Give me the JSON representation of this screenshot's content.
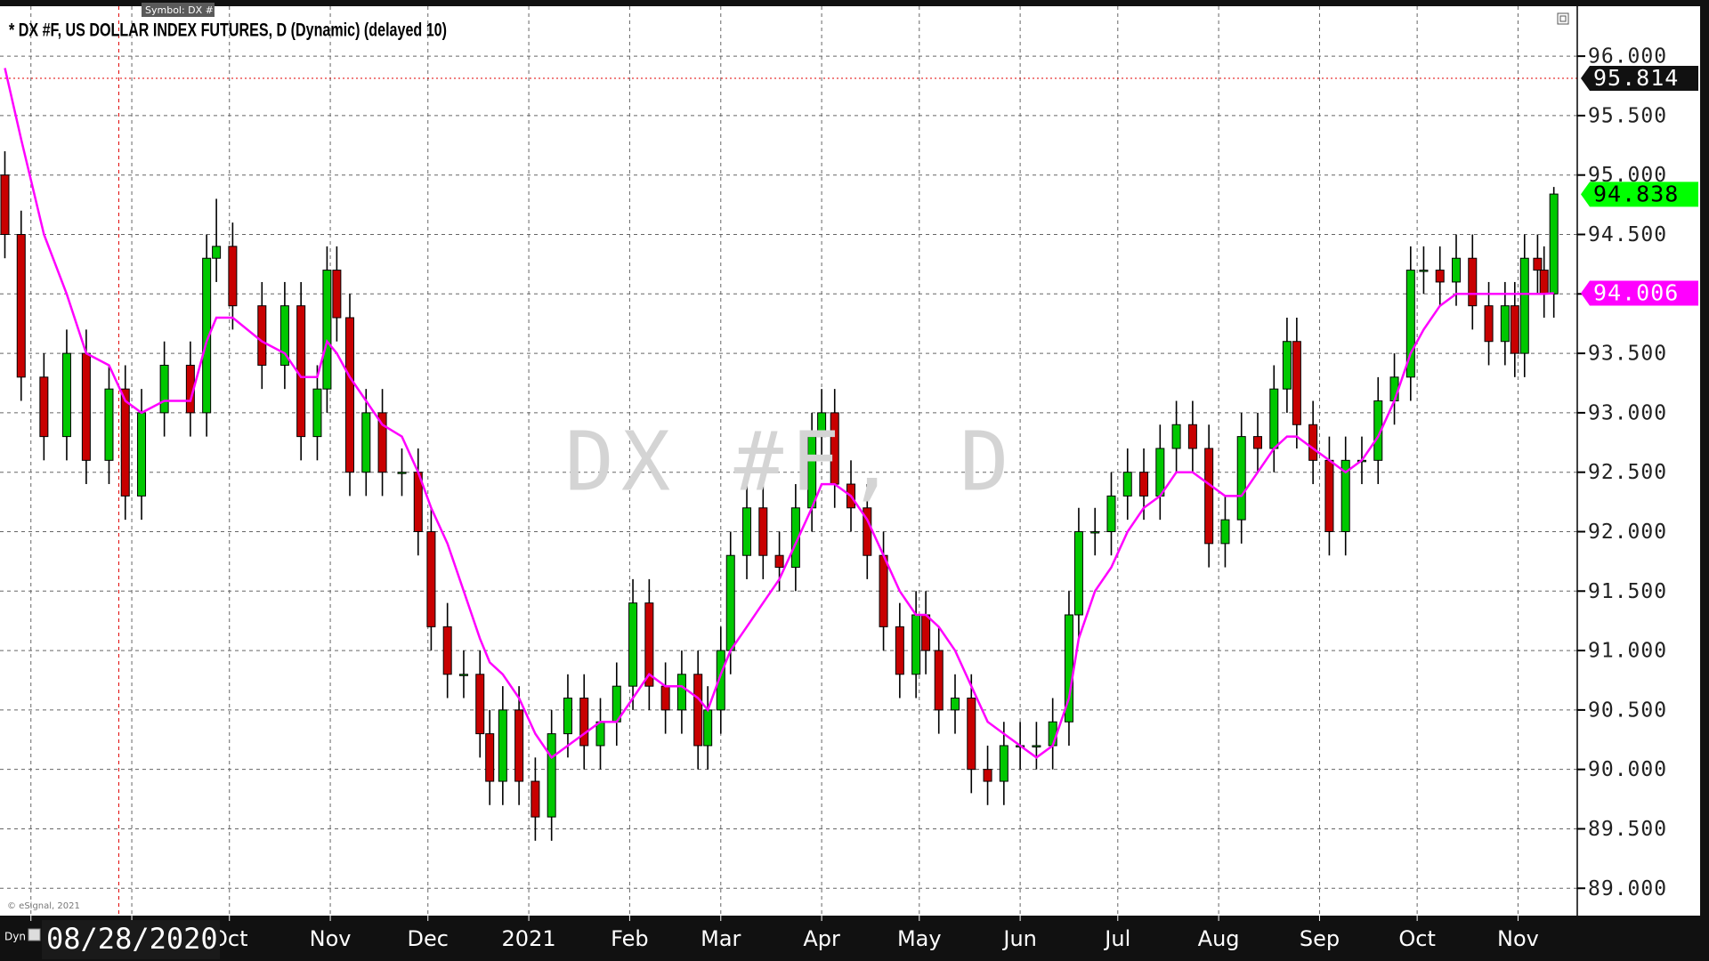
{
  "chart_data": {
    "type": "candlestick",
    "title": "* DX #F, US DOLLAR INDEX FUTURES, D (Dynamic) (delayed 10)",
    "symbol_tooltip": "Symbol: DX #F",
    "watermark": "DX #F, D",
    "copyright": "© eSignal, 2021",
    "corner_label": "Dyn",
    "cursor": {
      "x": 0,
      "label": "08/28/2020",
      "color": "#e00000"
    },
    "grid": true,
    "xlim": [
      -36.5,
      448.2
    ],
    "ylim": [
      88.77,
      96.42
    ],
    "xticks": [
      {
        "value": -27,
        "label": null
      },
      {
        "value": 4,
        "label": null
      },
      {
        "value": 34,
        "label": "Oct"
      },
      {
        "value": 65,
        "label": "Nov"
      },
      {
        "value": 95,
        "label": "Dec"
      },
      {
        "value": 126,
        "label": "2021"
      },
      {
        "value": 157,
        "label": "Feb"
      },
      {
        "value": 185,
        "label": "Mar"
      },
      {
        "value": 216,
        "label": "Apr"
      },
      {
        "value": 246,
        "label": "May"
      },
      {
        "value": 277,
        "label": "Jun"
      },
      {
        "value": 307,
        "label": "Jul"
      },
      {
        "value": 338,
        "label": "Aug"
      },
      {
        "value": 369,
        "label": "Sep"
      },
      {
        "value": 399,
        "label": "Oct"
      },
      {
        "value": 430,
        "label": "Nov"
      }
    ],
    "yticks": [
      {
        "value": 89,
        "label": "89.000"
      },
      {
        "value": 89.5,
        "label": "89.500"
      },
      {
        "value": 90,
        "label": "90.000"
      },
      {
        "value": 90.5,
        "label": "90.500"
      },
      {
        "value": 91,
        "label": "91.000"
      },
      {
        "value": 91.5,
        "label": "91.500"
      },
      {
        "value": 92,
        "label": "92.000"
      },
      {
        "value": 92.5,
        "label": "92.500"
      },
      {
        "value": 93,
        "label": "93.000"
      },
      {
        "value": 93.5,
        "label": "93.500"
      },
      {
        "value": 94,
        "label": "94.000"
      },
      {
        "value": 94.5,
        "label": "94.500"
      },
      {
        "value": 95,
        "label": "95.000"
      },
      {
        "value": 95.5,
        "label": "95.500"
      },
      {
        "value": 96,
        "label": "96.000"
      }
    ],
    "x": [
      -35,
      -30,
      -23,
      -16,
      -10,
      -3,
      2,
      7,
      14,
      22,
      27,
      30,
      35,
      44,
      51,
      56,
      61,
      64,
      67,
      71,
      76,
      81,
      87,
      92,
      96,
      101,
      106,
      111,
      114,
      118,
      123,
      128,
      133,
      138,
      143,
      148,
      153,
      158,
      163,
      168,
      173,
      178,
      181,
      185,
      188,
      193,
      198,
      203,
      208,
      213,
      216,
      220,
      225,
      230,
      235,
      240,
      245,
      248,
      252,
      257,
      262,
      267,
      272,
      277,
      282,
      287,
      292,
      295,
      300,
      305,
      310,
      315,
      320,
      325,
      330,
      335,
      340,
      345,
      350,
      355,
      359,
      362,
      367,
      372,
      377,
      382,
      387,
      392,
      397,
      401,
      406,
      411,
      416,
      421,
      426,
      429,
      432,
      436,
      438,
      441
    ],
    "candles": {
      "up_color": "#00c800",
      "down_color": "#c80000",
      "open": [
        95.0,
        94.5,
        93.3,
        92.8,
        93.5,
        92.6,
        93.2,
        92.3,
        93.0,
        93.4,
        93.0,
        94.3,
        94.4,
        93.9,
        93.4,
        93.9,
        92.8,
        93.2,
        94.2,
        93.8,
        92.5,
        93.0,
        92.5,
        92.5,
        92.0,
        91.2,
        90.8,
        90.8,
        90.3,
        89.9,
        90.5,
        89.9,
        89.6,
        90.3,
        90.6,
        90.2,
        90.4,
        90.7,
        91.4,
        90.7,
        90.5,
        90.8,
        90.2,
        90.5,
        91.0,
        91.8,
        92.2,
        91.8,
        91.7,
        92.2,
        92.8,
        93.0,
        92.4,
        92.2,
        91.8,
        91.2,
        90.8,
        91.3,
        91.0,
        90.5,
        90.6,
        90.0,
        89.9,
        90.2,
        90.2,
        90.2,
        90.4,
        91.3,
        92.0,
        92.0,
        92.3,
        92.5,
        92.3,
        92.7,
        92.9,
        92.7,
        91.9,
        92.1,
        92.8,
        92.7,
        93.2,
        93.6,
        92.9,
        92.6,
        92.0,
        92.6,
        92.6,
        93.1,
        93.3,
        94.2,
        94.2,
        94.1,
        94.3,
        93.9,
        93.6,
        93.9,
        93.5,
        94.3,
        94.2,
        94.0
      ],
      "high": [
        95.2,
        94.7,
        93.5,
        93.7,
        93.7,
        93.4,
        93.4,
        93.2,
        93.6,
        93.6,
        94.5,
        94.8,
        94.6,
        94.1,
        94.1,
        94.1,
        93.4,
        94.4,
        94.4,
        94.0,
        93.2,
        93.2,
        92.7,
        92.7,
        92.2,
        91.4,
        91.0,
        91.0,
        90.5,
        90.7,
        90.7,
        90.1,
        90.5,
        90.8,
        90.8,
        90.6,
        90.9,
        91.6,
        91.6,
        90.9,
        91.0,
        91.0,
        90.7,
        91.2,
        92.0,
        92.4,
        92.4,
        92.0,
        92.4,
        93.0,
        93.2,
        93.2,
        92.6,
        92.4,
        92.0,
        91.4,
        91.5,
        91.5,
        91.2,
        90.8,
        90.8,
        90.2,
        90.4,
        90.4,
        90.4,
        90.6,
        91.5,
        92.2,
        92.2,
        92.5,
        92.7,
        92.7,
        92.9,
        93.1,
        93.1,
        92.9,
        92.3,
        93.0,
        93.0,
        93.4,
        93.8,
        93.8,
        93.1,
        92.8,
        92.8,
        92.8,
        93.3,
        93.5,
        94.4,
        94.4,
        94.4,
        94.5,
        94.5,
        94.1,
        94.1,
        94.1,
        94.5,
        94.5,
        94.4,
        94.9
      ],
      "low": [
        94.3,
        93.1,
        92.6,
        92.6,
        92.4,
        92.4,
        92.1,
        92.1,
        92.8,
        92.8,
        92.8,
        94.1,
        93.7,
        93.2,
        93.2,
        92.6,
        92.6,
        93.0,
        93.6,
        92.3,
        92.3,
        92.3,
        92.3,
        91.8,
        91.0,
        90.6,
        90.6,
        90.1,
        89.7,
        89.7,
        89.7,
        89.4,
        89.4,
        90.1,
        90.0,
        90.0,
        90.2,
        90.5,
        90.5,
        90.3,
        90.3,
        90.0,
        90.0,
        90.3,
        90.8,
        91.6,
        91.6,
        91.5,
        91.5,
        92.0,
        92.6,
        92.2,
        92.0,
        91.6,
        91.0,
        90.6,
        90.6,
        90.8,
        90.3,
        90.3,
        89.8,
        89.7,
        89.7,
        90.0,
        90.0,
        90.0,
        90.2,
        91.1,
        91.8,
        91.8,
        92.1,
        92.1,
        92.1,
        92.5,
        92.5,
        91.7,
        91.7,
        91.9,
        92.5,
        92.5,
        93.0,
        92.7,
        92.4,
        91.8,
        91.8,
        92.4,
        92.4,
        92.9,
        93.1,
        94.0,
        93.9,
        93.9,
        93.7,
        93.4,
        93.4,
        93.3,
        93.3,
        94.0,
        93.8,
        93.8
      ],
      "close": [
        94.5,
        93.3,
        92.8,
        93.5,
        92.6,
        93.2,
        92.3,
        93.0,
        93.4,
        93.0,
        94.3,
        94.4,
        93.9,
        93.4,
        93.9,
        92.8,
        93.2,
        94.2,
        93.8,
        92.5,
        93.0,
        92.5,
        92.5,
        92.0,
        91.2,
        90.8,
        90.8,
        90.3,
        89.9,
        90.5,
        89.9,
        89.6,
        90.3,
        90.6,
        90.2,
        90.4,
        90.7,
        91.4,
        90.7,
        90.5,
        90.8,
        90.2,
        90.5,
        91.0,
        91.8,
        92.2,
        91.8,
        91.7,
        92.2,
        92.8,
        93.0,
        92.4,
        92.2,
        91.8,
        91.2,
        90.8,
        91.3,
        91.0,
        90.5,
        90.6,
        90.0,
        89.9,
        90.2,
        90.2,
        90.2,
        90.4,
        91.3,
        92.0,
        92.0,
        92.3,
        92.5,
        92.3,
        92.7,
        92.9,
        92.7,
        91.9,
        92.1,
        92.8,
        92.7,
        93.2,
        93.6,
        92.9,
        92.6,
        92.0,
        92.6,
        92.6,
        93.1,
        93.3,
        94.2,
        94.2,
        94.1,
        94.3,
        93.9,
        93.6,
        93.9,
        93.5,
        94.3,
        94.2,
        94.0,
        94.84
      ]
    },
    "moving_average": {
      "color": "#ff00ff",
      "values": [
        95.9,
        95.3,
        94.5,
        94.0,
        93.5,
        93.4,
        93.1,
        93.0,
        93.1,
        93.1,
        93.6,
        93.8,
        93.8,
        93.6,
        93.5,
        93.3,
        93.3,
        93.6,
        93.5,
        93.3,
        93.1,
        92.9,
        92.8,
        92.5,
        92.2,
        91.9,
        91.5,
        91.1,
        90.9,
        90.8,
        90.6,
        90.3,
        90.1,
        90.2,
        90.3,
        90.4,
        90.4,
        90.6,
        90.8,
        90.7,
        90.7,
        90.6,
        90.5,
        90.8,
        91.0,
        91.2,
        91.4,
        91.6,
        91.9,
        92.2,
        92.4,
        92.4,
        92.3,
        92.1,
        91.8,
        91.5,
        91.3,
        91.3,
        91.2,
        91.0,
        90.7,
        90.4,
        90.3,
        90.2,
        90.1,
        90.2,
        90.6,
        91.1,
        91.5,
        91.7,
        92.0,
        92.2,
        92.3,
        92.5,
        92.5,
        92.4,
        92.3,
        92.3,
        92.5,
        92.7,
        92.8,
        92.8,
        92.7,
        92.6,
        92.5,
        92.6,
        92.8,
        93.1,
        93.5,
        93.7,
        93.9,
        94.0,
        94.0,
        94.0,
        94.0,
        94.0,
        94.0,
        94.0,
        94.0,
        94.006
      ]
    },
    "price_tags": [
      {
        "value": 95.814,
        "color": "#111111",
        "text_color": "#ffffff",
        "line_color": "#e00000"
      },
      {
        "value": 94.838,
        "color": "#00ff00",
        "text_color": "#000000"
      },
      {
        "value": 94.006,
        "color": "#ff00ff",
        "text_color": "#ffffff"
      }
    ]
  }
}
